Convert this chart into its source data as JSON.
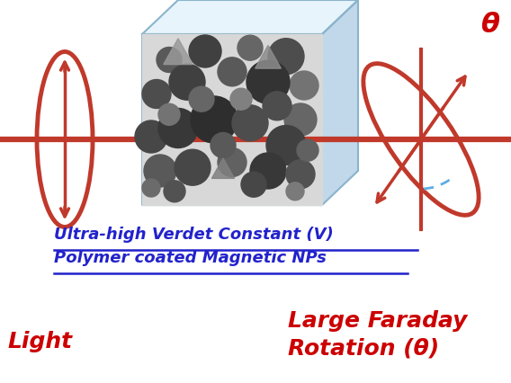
{
  "bg_color": "#ffffff",
  "cube_face_color": "#daeaf7",
  "cube_top_color": "#e8f4fb",
  "cube_side_color": "#c0d8ea",
  "cube_edge_color": "#8ab4cc",
  "beam_color": "#c0392b",
  "ellipse_color": "#c0392b",
  "dashed_arc_color": "#5dade2",
  "text_blue": "#2222cc",
  "text_red": "#cc0000",
  "title_line1": "Ultra-high Verdet Constant (V)",
  "title_line2": "Polymer coated Magnetic NPs",
  "label_light": "Light",
  "label_rotation_line1": "Large Faraday",
  "label_rotation_line2": "Rotation (θ)",
  "label_theta": "θ",
  "figsize": [
    5.68,
    4.26
  ],
  "dpi": 100
}
